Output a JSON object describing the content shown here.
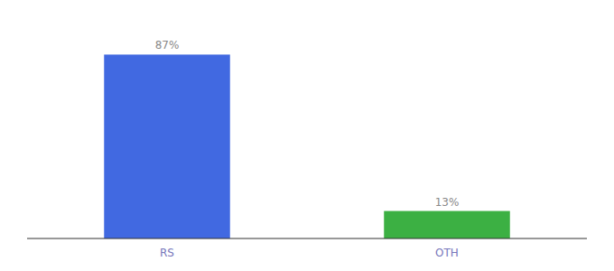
{
  "chart_data": {
    "type": "bar",
    "categories": [
      "RS",
      "OTH"
    ],
    "values": [
      87,
      13
    ],
    "value_labels": [
      "87%",
      "13%"
    ],
    "colors": [
      "#4169E1",
      "#3CB043"
    ],
    "ylim": [
      0,
      100
    ],
    "data_labels": true,
    "tick_labels": "x"
  }
}
